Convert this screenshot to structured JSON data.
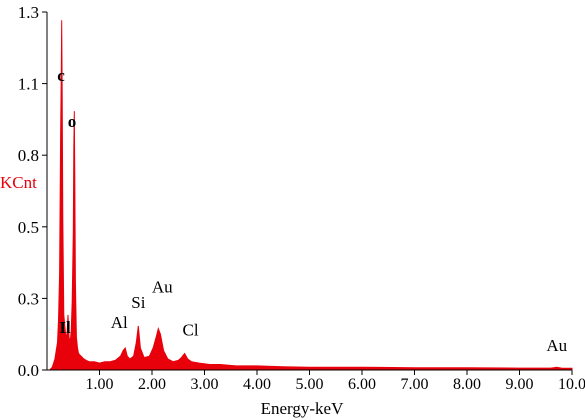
{
  "chart_data": {
    "type": "area",
    "title": "",
    "xlabel": "Energy-keV",
    "ylabel": "KCnt",
    "xlim": [
      0,
      10.0
    ],
    "ylim": [
      0,
      1.3
    ],
    "x_ticks": [
      "1.00",
      "2.00",
      "3.00",
      "4.00",
      "5.00",
      "6.00",
      "7.00",
      "8.00",
      "9.00",
      "10.0"
    ],
    "y_ticks": [
      "0.0",
      "0.3",
      "0.5",
      "0.8",
      "1.1",
      "1.3"
    ],
    "grid": false,
    "legend": "none",
    "colors": {
      "spectrum": "#e8000b",
      "axis": "#000000",
      "ylabel": "#e8000b"
    },
    "peaks": [
      {
        "label": "c",
        "energy": 0.28,
        "value": 1.27,
        "bold": true
      },
      {
        "label": "o",
        "energy": 0.52,
        "value": 0.94,
        "bold": true
      },
      {
        "label": "Il",
        "energy": 0.4,
        "value": 0.2,
        "bold": true
      },
      {
        "label": "Al",
        "energy": 1.49,
        "value": 0.08,
        "bold": false
      },
      {
        "label": "Si",
        "energy": 1.74,
        "value": 0.16,
        "bold": false
      },
      {
        "label": "Au",
        "energy": 2.12,
        "value": 0.15,
        "bold": false
      },
      {
        "label": "Cl",
        "energy": 2.62,
        "value": 0.06,
        "bold": false
      },
      {
        "label": "Au",
        "energy": 9.71,
        "value": 0.01,
        "bold": false
      }
    ],
    "series": [
      {
        "x": [
          0.05,
          0.1,
          0.15,
          0.2,
          0.22,
          0.24,
          0.26,
          0.27,
          0.28,
          0.29,
          0.3,
          0.32,
          0.34,
          0.36,
          0.38,
          0.4,
          0.42,
          0.44,
          0.46,
          0.48,
          0.5,
          0.51,
          0.52,
          0.53,
          0.54,
          0.56,
          0.58,
          0.6,
          0.65,
          0.7,
          0.75,
          0.8,
          0.9,
          1.0,
          1.1,
          1.2,
          1.3,
          1.4,
          1.45,
          1.49,
          1.53,
          1.58,
          1.65,
          1.7,
          1.74,
          1.78,
          1.85,
          1.95,
          2.02,
          2.08,
          2.12,
          2.16,
          2.22,
          2.3,
          2.4,
          2.5,
          2.56,
          2.62,
          2.68,
          2.75,
          2.9,
          3.1,
          3.3,
          3.6,
          4.0,
          4.5,
          5.0,
          6.0,
          7.0,
          8.0,
          9.0,
          9.6,
          9.71,
          9.8,
          10.0
        ],
        "y": [
          0.0,
          0.01,
          0.04,
          0.1,
          0.18,
          0.35,
          0.85,
          1.05,
          1.27,
          1.0,
          0.55,
          0.2,
          0.16,
          0.12,
          0.13,
          0.2,
          0.12,
          0.1,
          0.14,
          0.25,
          0.5,
          0.8,
          0.94,
          0.7,
          0.32,
          0.12,
          0.08,
          0.06,
          0.05,
          0.04,
          0.035,
          0.03,
          0.03,
          0.025,
          0.03,
          0.03,
          0.035,
          0.05,
          0.07,
          0.08,
          0.05,
          0.04,
          0.05,
          0.1,
          0.16,
          0.08,
          0.045,
          0.05,
          0.08,
          0.12,
          0.15,
          0.13,
          0.07,
          0.04,
          0.03,
          0.035,
          0.045,
          0.06,
          0.04,
          0.03,
          0.025,
          0.02,
          0.02,
          0.015,
          0.015,
          0.012,
          0.01,
          0.01,
          0.008,
          0.008,
          0.007,
          0.007,
          0.01,
          0.007,
          0.006
        ]
      }
    ]
  }
}
